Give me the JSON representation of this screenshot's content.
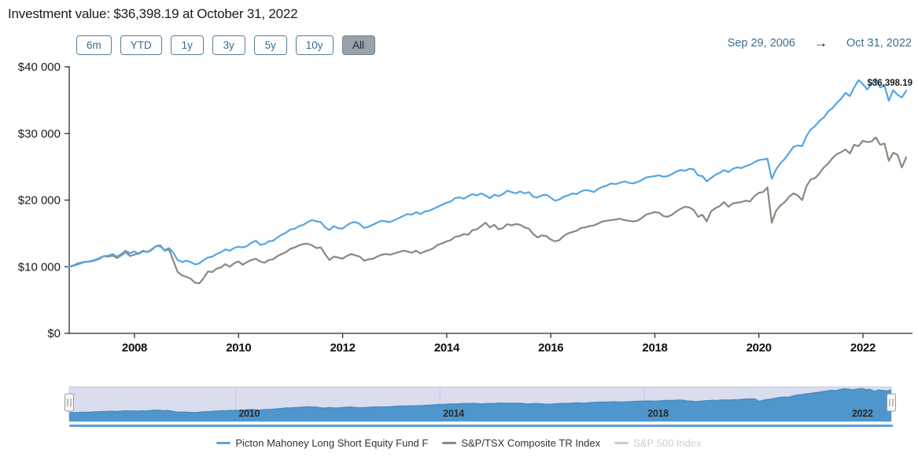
{
  "header": {
    "title": "Investment value: $36,398.19 at October 31, 2022"
  },
  "toolbar": {
    "range_buttons": [
      {
        "label": "6m",
        "active": false
      },
      {
        "label": "YTD",
        "active": false
      },
      {
        "label": "1y",
        "active": false
      },
      {
        "label": "3y",
        "active": false
      },
      {
        "label": "5y",
        "active": false
      },
      {
        "label": "10y",
        "active": false
      },
      {
        "label": "All",
        "active": true
      }
    ],
    "date_range": {
      "start": "Sep 29, 2006",
      "arrow": "→",
      "end": "Oct 31, 2022"
    }
  },
  "chart_data": {
    "type": "line",
    "x_unit": "month",
    "x_start": "2006-09",
    "x_end": "2022-10",
    "end_label": "$36,398.19",
    "x_axis": {
      "start_year": 2006.745,
      "end_year": 2022.831,
      "tick_years": [
        2008,
        2010,
        2012,
        2014,
        2016,
        2018,
        2020,
        2022
      ],
      "tick_labels": [
        "2008",
        "2010",
        "2012",
        "2014",
        "2016",
        "2018",
        "2020",
        "2022"
      ]
    },
    "y_axis": {
      "min": 0,
      "max": 40000,
      "ticks": [
        {
          "label": "$0",
          "value": 0
        },
        {
          "label": "$10 000",
          "value": 10000
        },
        {
          "label": "$20 000",
          "value": 20000
        },
        {
          "label": "$30 000",
          "value": 30000
        },
        {
          "label": "$40 000",
          "value": 40000
        }
      ]
    },
    "series": [
      {
        "name": "Picton Mahoney Long Short Equity Fund F",
        "color": "#56a6e2",
        "visible": true,
        "values": [
          10000,
          10150,
          10350,
          10600,
          10750,
          10850,
          11050,
          11300,
          11600,
          11650,
          11900,
          11500,
          11900,
          12400,
          12000,
          12300,
          11900,
          12300,
          12200,
          12600,
          13100,
          13050,
          12500,
          12800,
          12100,
          11000,
          10700,
          10900,
          10700,
          10350,
          10500,
          11000,
          11400,
          11500,
          11900,
          12200,
          12600,
          12400,
          12800,
          13000,
          12900,
          13100,
          13600,
          13900,
          13300,
          13400,
          13800,
          13900,
          14400,
          14800,
          15100,
          15600,
          15700,
          16100,
          16300,
          16700,
          17000,
          16800,
          16700,
          15900,
          15500,
          16100,
          15800,
          15700,
          16200,
          16600,
          16700,
          16400,
          15800,
          16000,
          16300,
          16600,
          16900,
          16800,
          16700,
          17000,
          17300,
          17600,
          17900,
          17800,
          18200,
          17900,
          18300,
          18400,
          18700,
          19000,
          19300,
          19600,
          19800,
          20300,
          20400,
          20200,
          20600,
          20900,
          20700,
          21000,
          20700,
          20300,
          20800,
          20600,
          20900,
          21400,
          21200,
          21000,
          21300,
          21000,
          21200,
          20500,
          20400,
          20700,
          20800,
          20400,
          19900,
          20100,
          20500,
          20700,
          21000,
          20900,
          21300,
          21500,
          21400,
          21200,
          21700,
          22000,
          22200,
          22500,
          22400,
          22600,
          22800,
          22600,
          22500,
          22700,
          23000,
          23400,
          23500,
          23600,
          23700,
          23500,
          23600,
          23900,
          24300,
          24500,
          24400,
          24700,
          24600,
          23700,
          23600,
          22800,
          23300,
          23800,
          24100,
          24500,
          24200,
          24700,
          24900,
          24800,
          25100,
          25300,
          25700,
          26000,
          26100,
          26200,
          23200,
          24600,
          25500,
          26200,
          27100,
          28000,
          28200,
          28100,
          29600,
          30600,
          31100,
          31900,
          32400,
          33300,
          33800,
          34600,
          35200,
          36100,
          35600,
          36900,
          38000,
          37400,
          36600,
          37400,
          38200,
          36900,
          37200,
          34900,
          36500,
          35800,
          35400,
          36398.19
        ]
      },
      {
        "name": "S&P/TSX Composite TR Index",
        "color": "#8d877e",
        "visible": true,
        "values": [
          10000,
          10200,
          10500,
          10650,
          10750,
          10800,
          10950,
          11200,
          11600,
          11500,
          11700,
          11300,
          11700,
          12200,
          11600,
          11800,
          12000,
          12400,
          12200,
          12500,
          13100,
          13200,
          12400,
          12600,
          10900,
          9200,
          8700,
          8500,
          8200,
          7600,
          7500,
          8300,
          9300,
          9200,
          9700,
          9900,
          10400,
          10000,
          10500,
          10800,
          10300,
          10700,
          11000,
          11200,
          10800,
          10600,
          11000,
          11100,
          11600,
          11900,
          12200,
          12700,
          12900,
          13200,
          13400,
          13450,
          13200,
          12800,
          12900,
          11900,
          11000,
          11500,
          11400,
          11200,
          11600,
          11900,
          11700,
          11500,
          10900,
          11100,
          11200,
          11500,
          11800,
          11900,
          11800,
          12000,
          12200,
          12400,
          12300,
          12100,
          12400,
          12000,
          12300,
          12500,
          12800,
          13300,
          13500,
          13800,
          14000,
          14500,
          14600,
          14900,
          14800,
          15500,
          15600,
          16100,
          16600,
          15900,
          16300,
          15600,
          15800,
          16400,
          16200,
          16400,
          16300,
          15900,
          15700,
          14900,
          14400,
          14700,
          14600,
          14100,
          13800,
          14000,
          14600,
          15000,
          15200,
          15400,
          15800,
          15900,
          16100,
          16200,
          16500,
          16800,
          16900,
          17000,
          17100,
          17200,
          17000,
          16900,
          16800,
          16900,
          17300,
          17800,
          18000,
          18200,
          18100,
          17600,
          17500,
          17800,
          18300,
          18700,
          19000,
          18900,
          18500,
          17500,
          17800,
          16800,
          18300,
          18800,
          19100,
          19700,
          19000,
          19500,
          19600,
          19700,
          19900,
          19800,
          20600,
          21100,
          21200,
          21900,
          16600,
          18400,
          19200,
          19700,
          20500,
          21000,
          20700,
          20000,
          22100,
          23100,
          23300,
          24000,
          24900,
          25500,
          26300,
          26900,
          27200,
          27600,
          27000,
          28300,
          28100,
          28900,
          28700,
          28800,
          29400,
          28300,
          28500,
          25900,
          27100,
          26800,
          24900,
          26400
        ]
      },
      {
        "name": "S&P 500 Index",
        "color": "#cdcdcd",
        "visible": false,
        "values": []
      }
    ],
    "navigator": {
      "tick_years": [
        2010,
        2014,
        2018,
        2022
      ],
      "tick_labels": [
        "2010",
        "2014",
        "2018",
        "2022"
      ],
      "area_series": "Picton Mahoney Long Short Equity Fund F",
      "area_color": "#4e96cc",
      "edge_color": "#3d85bb",
      "background": "#d9ddee",
      "gridline_color": "#c4c9dc",
      "scrollbar_color": "#5f9fd6"
    }
  }
}
